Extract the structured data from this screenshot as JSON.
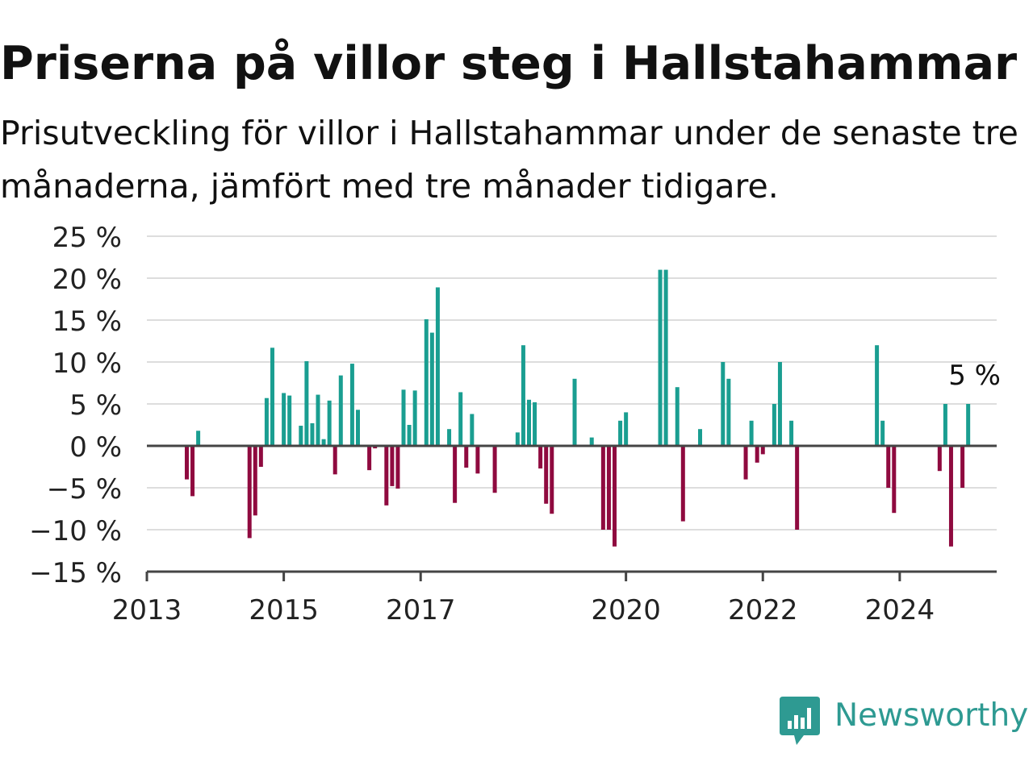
{
  "title": "Priserna på villor steg i Hallstahammar",
  "subtitle": "Prisutveckling för villor i Hallstahammar under de senaste tre månaderna, jämfört med tre månader tidigare.",
  "brand": {
    "name": "Newsworthy",
    "icon": "newsworthy-logo-icon",
    "color": "#2e9a92"
  },
  "colors": {
    "positive": "#1a9e91",
    "negative": "#8f0a3f",
    "grid": "#dddddd",
    "axis": "#444444"
  },
  "chart_data": {
    "type": "bar",
    "title": "Priserna på villor steg i Hallstahammar",
    "xlabel": "",
    "ylabel": "",
    "xlim": [
      "2013-01-01",
      "2025-06-01"
    ],
    "ylim": [
      -15,
      25
    ],
    "yticks": [
      25,
      20,
      15,
      10,
      5,
      0,
      -5,
      -10,
      -15
    ],
    "ytick_labels": [
      "25 %",
      "20 %",
      "15 %",
      "10 %",
      "5 %",
      "0 %",
      "−5 %",
      "−10 %",
      "−15 %"
    ],
    "xticks": [
      "2013-01-01",
      "2015-01-01",
      "2017-01-01",
      "2020-01-01",
      "2022-01-01",
      "2024-01-01"
    ],
    "xtick_labels": [
      "2013",
      "2015",
      "2017",
      "2020",
      "2022",
      "2024"
    ],
    "grid": true,
    "legend": "none",
    "annotation": {
      "text": "5 %",
      "date": "2024-12-01",
      "value": 5
    },
    "series": [
      {
        "values": [
          {
            "date": "2013-08-01",
            "value": -4
          },
          {
            "date": "2013-09-01",
            "value": -6
          },
          {
            "date": "2013-10-01",
            "value": 1.8
          },
          {
            "date": "2014-07-01",
            "value": -11
          },
          {
            "date": "2014-08-01",
            "value": -8.3
          },
          {
            "date": "2014-09-01",
            "value": -2.5
          },
          {
            "date": "2014-10-01",
            "value": 5.7
          },
          {
            "date": "2014-11-01",
            "value": 11.7
          },
          {
            "date": "2015-01-01",
            "value": 6.3
          },
          {
            "date": "2015-02-01",
            "value": 6
          },
          {
            "date": "2015-04-01",
            "value": 2.4
          },
          {
            "date": "2015-05-01",
            "value": 10.1
          },
          {
            "date": "2015-06-01",
            "value": 2.7
          },
          {
            "date": "2015-07-01",
            "value": 6.1
          },
          {
            "date": "2015-08-01",
            "value": 0.8
          },
          {
            "date": "2015-09-01",
            "value": 5.4
          },
          {
            "date": "2015-10-01",
            "value": -3.4
          },
          {
            "date": "2015-11-01",
            "value": 8.4
          },
          {
            "date": "2016-01-01",
            "value": 9.8
          },
          {
            "date": "2016-02-01",
            "value": 4.3
          },
          {
            "date": "2016-04-01",
            "value": -2.9
          },
          {
            "date": "2016-05-01",
            "value": -0.3
          },
          {
            "date": "2016-07-01",
            "value": -7.1
          },
          {
            "date": "2016-08-01",
            "value": -4.8
          },
          {
            "date": "2016-09-01",
            "value": -5.1
          },
          {
            "date": "2016-10-01",
            "value": 6.7
          },
          {
            "date": "2016-11-01",
            "value": 2.5
          },
          {
            "date": "2016-12-01",
            "value": 6.6
          },
          {
            "date": "2017-02-01",
            "value": 15.1
          },
          {
            "date": "2017-03-01",
            "value": 13.5
          },
          {
            "date": "2017-04-01",
            "value": 18.9
          },
          {
            "date": "2017-06-01",
            "value": 2
          },
          {
            "date": "2017-07-01",
            "value": -6.8
          },
          {
            "date": "2017-08-01",
            "value": 6.4
          },
          {
            "date": "2017-09-01",
            "value": -2.6
          },
          {
            "date": "2017-10-01",
            "value": 3.8
          },
          {
            "date": "2017-11-01",
            "value": -3.3
          },
          {
            "date": "2018-02-01",
            "value": -5.6
          },
          {
            "date": "2018-06-01",
            "value": 1.6
          },
          {
            "date": "2018-07-01",
            "value": 12
          },
          {
            "date": "2018-08-01",
            "value": 5.5
          },
          {
            "date": "2018-09-01",
            "value": 5.2
          },
          {
            "date": "2018-10-01",
            "value": -2.7
          },
          {
            "date": "2018-11-01",
            "value": -6.9
          },
          {
            "date": "2018-12-01",
            "value": -8.1
          },
          {
            "date": "2019-04-01",
            "value": 8
          },
          {
            "date": "2019-07-01",
            "value": 1
          },
          {
            "date": "2019-09-01",
            "value": -10
          },
          {
            "date": "2019-10-01",
            "value": -10
          },
          {
            "date": "2019-11-01",
            "value": -12
          },
          {
            "date": "2019-12-01",
            "value": 3
          },
          {
            "date": "2020-01-01",
            "value": 4
          },
          {
            "date": "2020-07-01",
            "value": 21
          },
          {
            "date": "2020-08-01",
            "value": 21
          },
          {
            "date": "2020-10-01",
            "value": 7
          },
          {
            "date": "2020-11-01",
            "value": -9
          },
          {
            "date": "2021-02-01",
            "value": 2
          },
          {
            "date": "2021-06-01",
            "value": 10
          },
          {
            "date": "2021-07-01",
            "value": 8
          },
          {
            "date": "2021-10-01",
            "value": -4
          },
          {
            "date": "2021-11-01",
            "value": 3
          },
          {
            "date": "2021-12-01",
            "value": -2
          },
          {
            "date": "2022-01-01",
            "value": -1
          },
          {
            "date": "2022-03-01",
            "value": 5
          },
          {
            "date": "2022-04-01",
            "value": 10
          },
          {
            "date": "2022-06-01",
            "value": 3
          },
          {
            "date": "2022-07-01",
            "value": -10
          },
          {
            "date": "2023-09-01",
            "value": 12
          },
          {
            "date": "2023-10-01",
            "value": 3
          },
          {
            "date": "2023-11-01",
            "value": -5
          },
          {
            "date": "2023-12-01",
            "value": -8
          },
          {
            "date": "2024-08-01",
            "value": -3
          },
          {
            "date": "2024-09-01",
            "value": 5
          },
          {
            "date": "2024-10-01",
            "value": -12
          },
          {
            "date": "2024-12-01",
            "value": -5
          },
          {
            "date": "2025-01-01",
            "value": 5
          }
        ]
      }
    ]
  }
}
